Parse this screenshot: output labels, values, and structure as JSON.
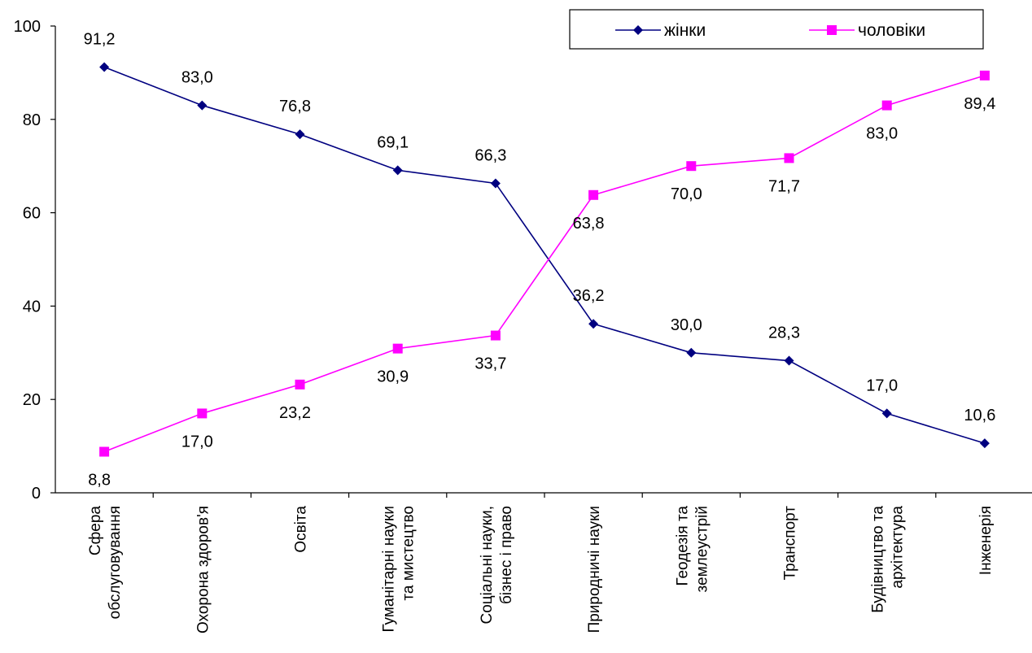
{
  "chart_data": {
    "type": "line",
    "categories": [
      [
        "Сфера",
        "обслуговування"
      ],
      [
        "Охорона здоров'я"
      ],
      [
        "Освіта"
      ],
      [
        "Гуманітарні науки",
        "та мистецтво"
      ],
      [
        "Соціальні науки,",
        "бізнес і право"
      ],
      [
        "Природничі науки"
      ],
      [
        "Геодезія та",
        "землеустрій"
      ],
      [
        "Транспорт"
      ],
      [
        "Будівництво та",
        "архітектура"
      ],
      [
        "Інженерія"
      ]
    ],
    "series": [
      {
        "name": "жінки",
        "color": "#000080",
        "marker": "diamond",
        "values": [
          91.2,
          83.0,
          76.8,
          69.1,
          66.3,
          36.2,
          30.0,
          28.3,
          17.0,
          10.6
        ],
        "labels": [
          "91,2",
          "83,0",
          "76,8",
          "69,1",
          "66,3",
          "36,2",
          "30,0",
          "28,3",
          "17,0",
          "10,6"
        ]
      },
      {
        "name": "чоловіки",
        "color": "#FF00FF",
        "marker": "square",
        "values": [
          8.8,
          17.0,
          23.2,
          30.9,
          33.7,
          63.8,
          70.0,
          71.7,
          83.0,
          89.4
        ],
        "labels": [
          "8,8",
          "17,0",
          "23,2",
          "30,9",
          "33,7",
          "63,8",
          "70,0",
          "71,7",
          "83,0",
          "89,4"
        ]
      }
    ],
    "ylim": [
      0,
      100
    ],
    "yticks": [
      0,
      20,
      40,
      60,
      80,
      100
    ],
    "grid": false,
    "legend_position": "top-right"
  }
}
